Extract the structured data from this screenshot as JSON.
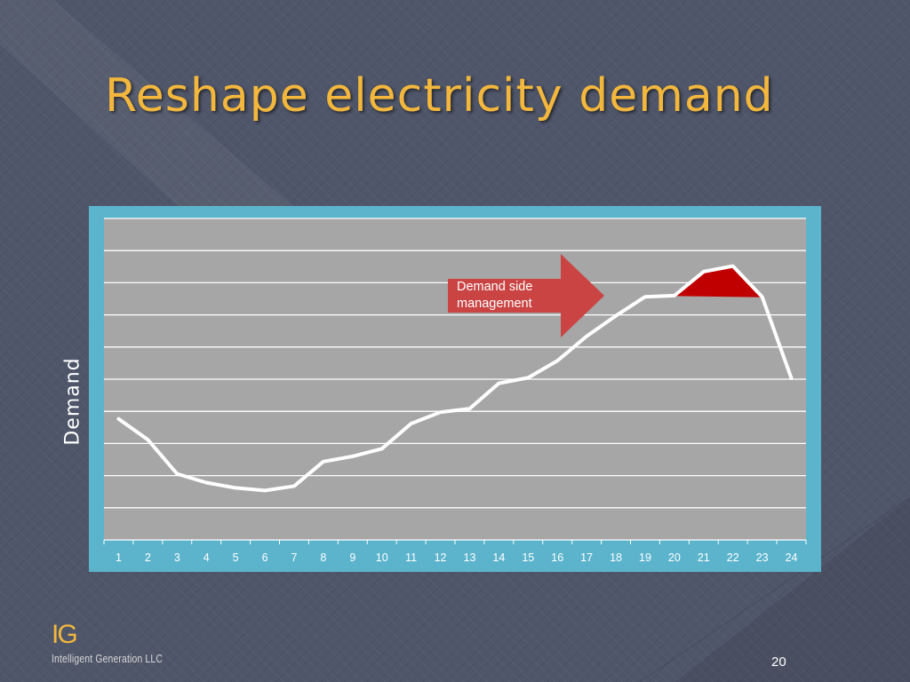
{
  "slide": {
    "title": "Reshape electricity demand",
    "page_number": "20",
    "colors": {
      "title": "#f3b73d",
      "chart_frame": "#5cb4cc",
      "plot_area": "#a6a6a6",
      "callout": "#c94443",
      "peak_fill": "#c00000"
    }
  },
  "callout": {
    "text": "Demand side management",
    "shape": "right-arrow"
  },
  "logo": {
    "mark": "IG",
    "name": "Intelligent Generation LLC"
  },
  "chart_data": {
    "type": "line",
    "title": "",
    "xlabel": "",
    "ylabel": "Demand",
    "categories": [
      "1",
      "2",
      "3",
      "4",
      "5",
      "6",
      "7",
      "8",
      "9",
      "10",
      "11",
      "12",
      "13",
      "14",
      "15",
      "16",
      "17",
      "18",
      "19",
      "20",
      "21",
      "22",
      "23",
      "24"
    ],
    "series": [
      {
        "values": [
          3.14,
          2.43,
          1.26,
          0.96,
          0.78,
          0.69,
          0.84,
          1.68,
          1.86,
          2.12,
          2.98,
          3.37,
          3.49,
          4.36,
          4.55,
          5.13,
          5.97,
          6.67,
          7.32,
          7.36,
          8.18,
          8.37,
          7.32,
          4.53
        ]
      }
    ],
    "highlight": {
      "label": "peak",
      "from_category": "20",
      "to_category": "23",
      "fill": "#c00000"
    },
    "ylim": [
      -1,
      10
    ],
    "gridlines": 10,
    "grid": true,
    "line_color": "#ffffff"
  }
}
